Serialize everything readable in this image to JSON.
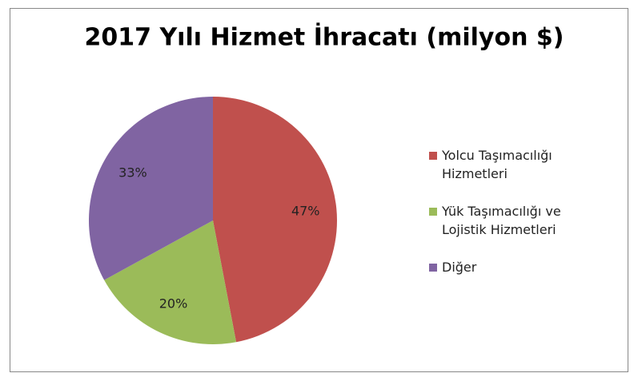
{
  "chart_data": {
    "type": "pie",
    "title": "2017 Yılı Hizmet İhracatı (milyon $)",
    "categories": [
      "Yolcu Taşımacılığı Hizmetleri",
      "Yük Taşımacılığı ve Lojistik Hizmetleri",
      "Diğer"
    ],
    "values": [
      47,
      20,
      33
    ],
    "value_labels": [
      "47%",
      "20%",
      "33%"
    ],
    "colors": [
      "#c0504d",
      "#9bbb59",
      "#8064a2"
    ],
    "legend": "right"
  }
}
